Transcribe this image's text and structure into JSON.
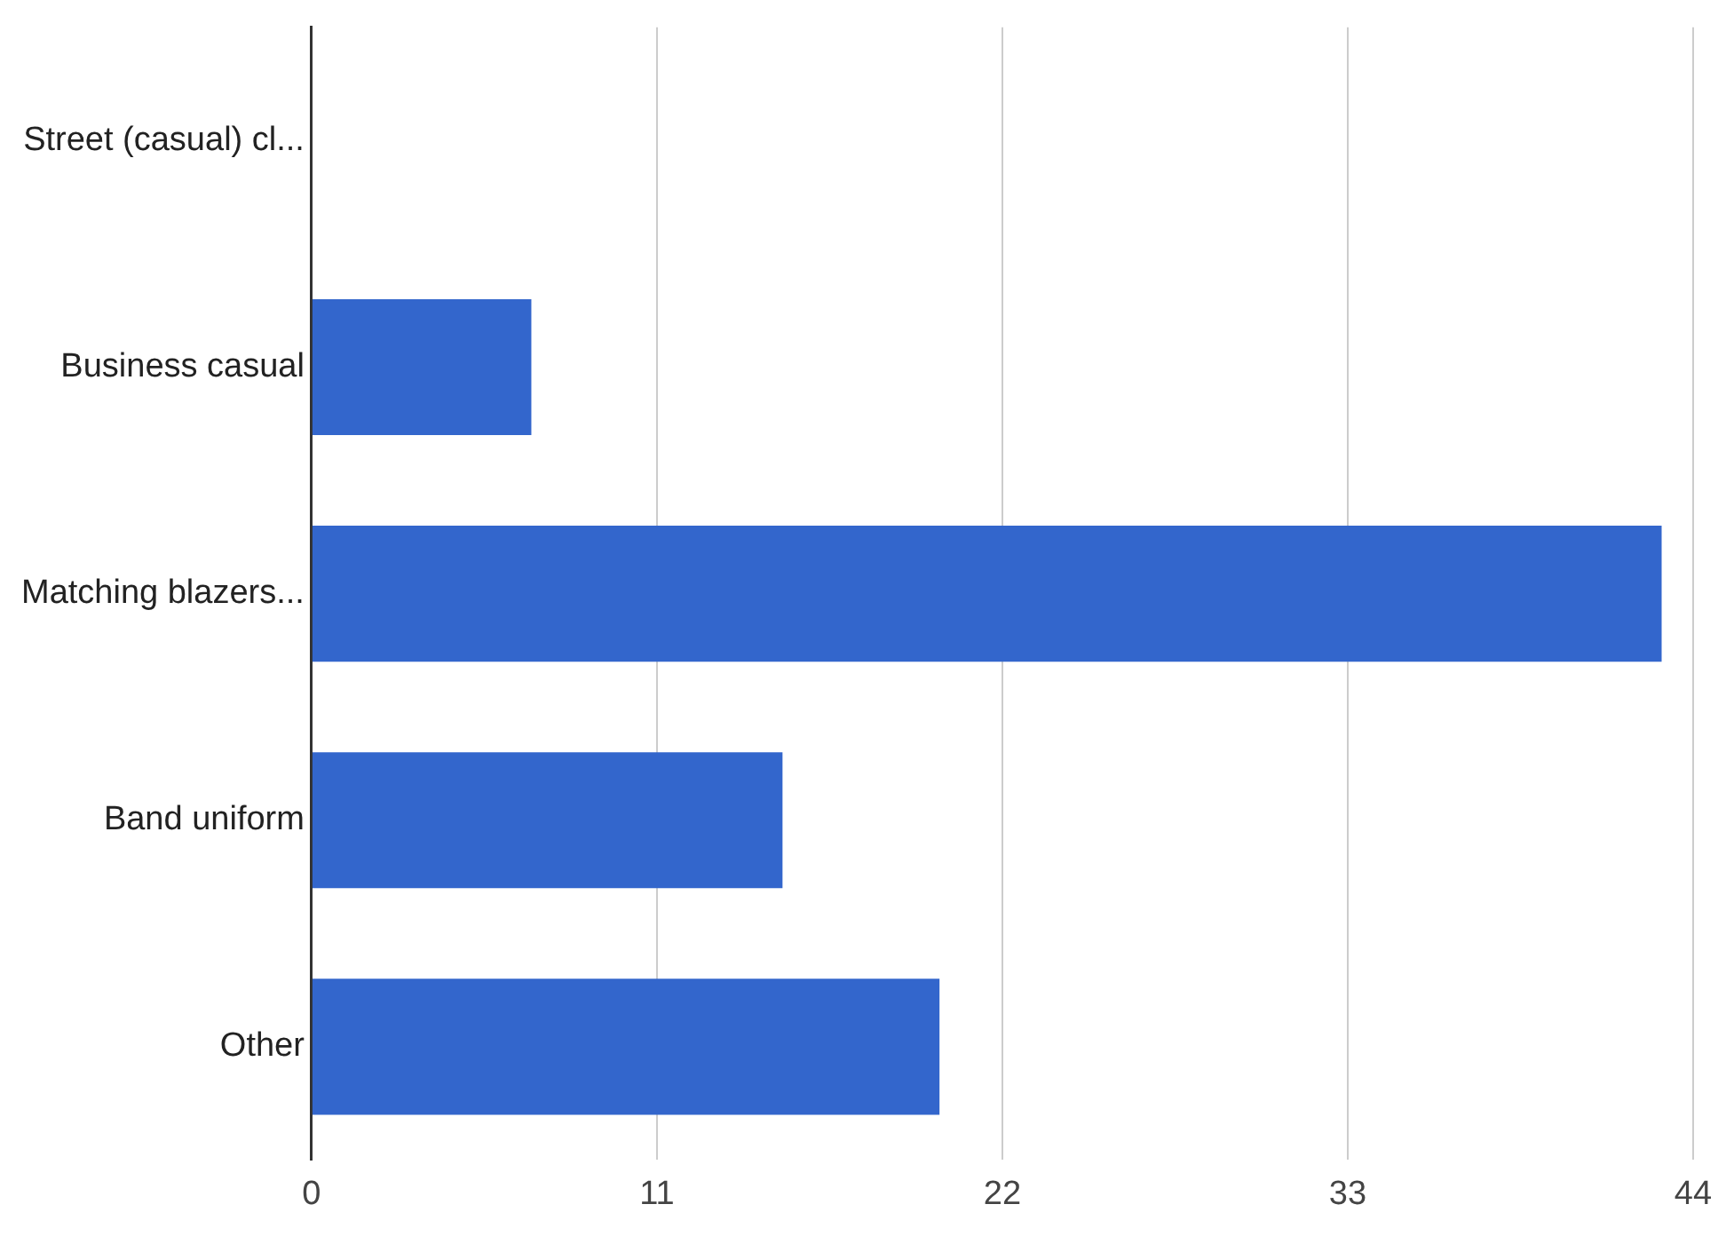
{
  "chart_data": {
    "type": "bar",
    "orientation": "horizontal",
    "categories": [
      "Street (casual) cl...",
      "Business casual",
      "Matching blazers...",
      "Band uniform",
      "Other"
    ],
    "values": [
      0,
      7,
      43,
      15,
      20
    ],
    "color": "#3366cc",
    "xlim": [
      0,
      44
    ],
    "xticks": [
      0,
      11,
      22,
      33,
      44
    ],
    "grid": "x",
    "legend": false
  }
}
